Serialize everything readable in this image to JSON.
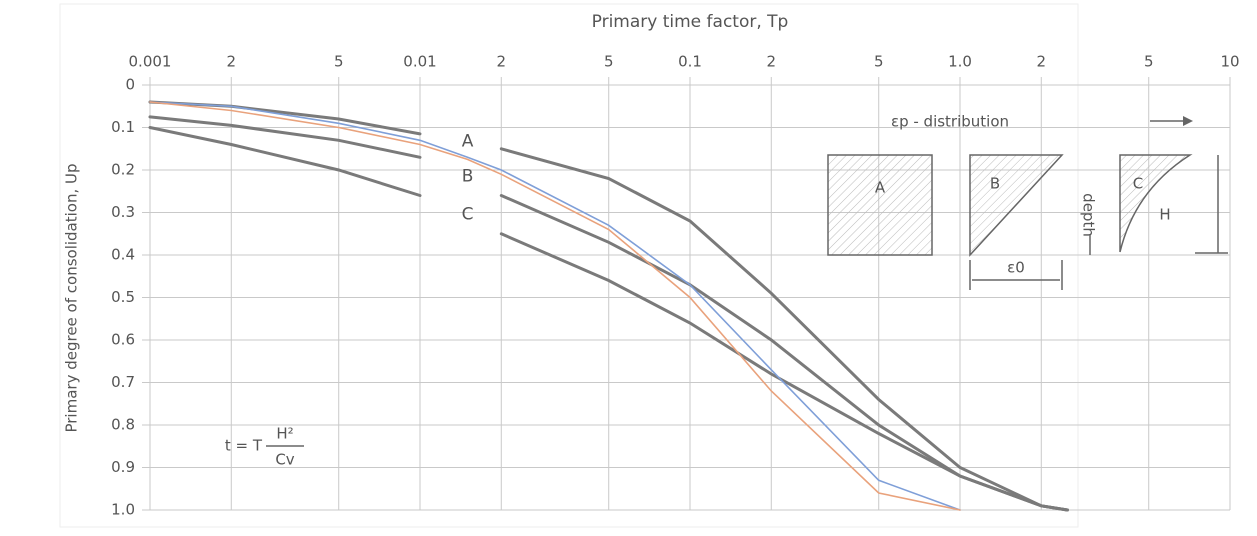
{
  "chart_data": {
    "type": "line",
    "xlabel": "Primary time factor, Tp",
    "ylabel": "Primary degree of consolidation, Up",
    "x_scale": "log",
    "y_inverted": true,
    "grid": true,
    "x": [
      0.001,
      0.002,
      0.005,
      0.01,
      0.015,
      0.02,
      0.05,
      0.1,
      0.2,
      0.5,
      1,
      2,
      2.5
    ],
    "series": [
      {
        "name": "A",
        "color": "#7a7a7a",
        "values": [
          0.04,
          0.05,
          0.08,
          0.115,
          null,
          0.15,
          0.22,
          0.32,
          0.49,
          0.74,
          0.9,
          0.99,
          1.0
        ]
      },
      {
        "name": "B",
        "color": "#7a7a7a",
        "values": [
          0.075,
          0.095,
          0.13,
          0.17,
          null,
          0.26,
          0.37,
          0.47,
          0.6,
          0.8,
          0.92,
          0.99,
          1.0
        ]
      },
      {
        "name": "C",
        "color": "#7a7a7a",
        "values": [
          0.1,
          0.14,
          0.2,
          0.26,
          null,
          0.35,
          0.46,
          0.56,
          0.68,
          0.82,
          0.92,
          0.99,
          1.0
        ]
      },
      {
        "color": "#7f9fd8",
        "values": [
          0.04,
          0.05,
          0.09,
          0.13,
          0.17,
          0.2,
          0.33,
          0.47,
          0.67,
          0.93,
          1.0,
          null,
          null
        ]
      },
      {
        "color": "#e9a27c",
        "values": [
          0.04,
          0.06,
          0.1,
          0.14,
          0.175,
          0.21,
          0.34,
          0.5,
          0.72,
          0.96,
          1.0,
          null,
          null
        ]
      }
    ],
    "xlim": [
      0.001,
      10
    ],
    "xticks": [
      0.001,
      {
        "value": 0.002,
        "label": "2"
      },
      {
        "value": 0.005,
        "label": "5"
      },
      0.01,
      {
        "value": 0.02,
        "label": "2"
      },
      {
        "value": 0.05,
        "label": "5"
      },
      0.1,
      {
        "value": 0.2,
        "label": "2"
      },
      {
        "value": 0.5,
        "label": "5"
      },
      {
        "value": 1,
        "label": "1.0"
      },
      {
        "value": 2,
        "label": "2"
      },
      {
        "value": 5,
        "label": "5"
      },
      10
    ],
    "ylim": [
      0,
      1
    ],
    "yticks": [
      0,
      0.1,
      0.2,
      0.3,
      0.4,
      0.5,
      0.6,
      0.7,
      0.8,
      0.9,
      {
        "value": 1,
        "label": "1.0"
      }
    ],
    "annotations": {
      "distribution": "εp - distribution",
      "depth": "depth",
      "strain": "ε0",
      "thickness": "H",
      "formula_left": "t = T",
      "formula_top": "H²",
      "formula_bottom": "Cv"
    }
  }
}
